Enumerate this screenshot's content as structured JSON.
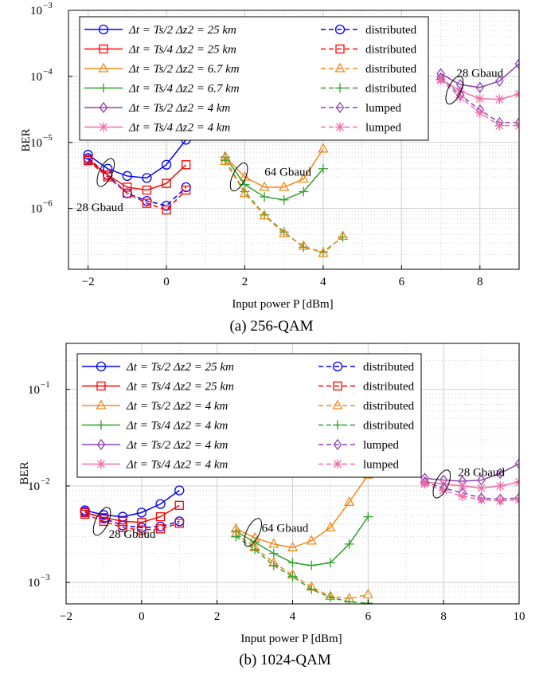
{
  "chart_data": [
    {
      "type": "line",
      "caption": "(a) 256-QAM",
      "xlabel": "Input power P [dBm]",
      "ylabel": "BER",
      "xlim": [
        -2.5,
        9
      ],
      "ylim": [
        1.2e-07,
        0.001
      ],
      "yscale": "log",
      "xticks": [
        -2,
        0,
        2,
        4,
        6,
        8
      ],
      "xtick_labels": [
        "−2",
        "0",
        "2",
        "4",
        "6",
        "8"
      ],
      "yticks": [
        1e-06,
        1e-05,
        0.0001,
        0.001
      ],
      "ytick_labels": [
        "10",
        "10",
        "10",
        "10"
      ],
      "ytick_exponents": [
        "−6",
        "−5",
        "−4",
        "−3"
      ],
      "grid": true,
      "legend_position": "top-left",
      "legend": [
        {
          "cfg": "Δt = Ts/2 Δz2 = 25 km",
          "mode": "distributed",
          "color": "#0000ff",
          "marker": "circle"
        },
        {
          "cfg": "Δt = Ts/4 Δz2 = 25 km",
          "mode": "distributed",
          "color": "#ff0000",
          "marker": "square"
        },
        {
          "cfg": "Δt = Ts/2 Δz2 = 6.7 km",
          "mode": "distributed",
          "color": "#f28a1b",
          "marker": "triangle"
        },
        {
          "cfg": "Δt = Ts/4 Δz2 = 6.7 km",
          "mode": "distributed",
          "color": "#33a02c",
          "marker": "plus"
        },
        {
          "cfg": "Δt = Ts/2 Δz2 = 4 km",
          "mode": "lumped",
          "color": "#8e44ad",
          "marker": "diamond"
        },
        {
          "cfg": "Δt = Ts/4 Δz2 = 4 km",
          "mode": "lumped",
          "color": "#f06eaa",
          "marker": "star"
        }
      ],
      "annotations": [
        {
          "text": "28 Gbaud",
          "x": -1.7,
          "y": 1.05e-06
        },
        {
          "text": "64 Gbaud",
          "x": 3.1,
          "y": 3.6e-06
        },
        {
          "text": "28 Gbaud",
          "x": 8.0,
          "y": 0.000113
        }
      ],
      "ellipses": [
        {
          "x": -1.55,
          "y": 3.5e-06
        },
        {
          "x": 1.85,
          "y": 3e-06
        },
        {
          "x": 7.35,
          "y": 6.2e-05
        }
      ],
      "series": [
        {
          "color": "#0000ff",
          "marker": "circle",
          "dash": "solid",
          "x": [
            -2,
            -1.5,
            -1,
            -0.5,
            0,
            0.5
          ],
          "y": [
            6.5e-06,
            4e-06,
            3.1e-06,
            2.9e-06,
            4.6e-06,
            1.1e-05
          ]
        },
        {
          "color": "#0000ff",
          "marker": "circle",
          "dash": "dashed",
          "x": [
            -2,
            -1.5,
            -1,
            -0.5,
            0,
            0.5
          ],
          "y": [
            5.8e-06,
            3.2e-06,
            1.7e-06,
            1.3e-06,
            1.1e-06,
            2.1e-06
          ]
        },
        {
          "color": "#ff0000",
          "marker": "square",
          "dash": "solid",
          "x": [
            -2,
            -1.5,
            -1,
            -0.5,
            0,
            0.5
          ],
          "y": [
            5.5e-06,
            3.2e-06,
            2.1e-06,
            1.9e-06,
            2.4e-06,
            4.6e-06
          ]
        },
        {
          "color": "#ff0000",
          "marker": "square",
          "dash": "dashed",
          "x": [
            -2,
            -1.5,
            -1,
            -0.5,
            0,
            0.5
          ],
          "y": [
            5.3e-06,
            3e-06,
            1.7e-06,
            1.2e-06,
            9.5e-07,
            1.9e-06
          ]
        },
        {
          "color": "#f28a1b",
          "marker": "triangle",
          "dash": "solid",
          "x": [
            1.5,
            2,
            2.5,
            3,
            3.5,
            4
          ],
          "y": [
            6.1e-06,
            3e-06,
            2.1e-06,
            2.1e-06,
            2.8e-06,
            8e-06
          ]
        },
        {
          "color": "#33a02c",
          "marker": "plus",
          "dash": "solid",
          "x": [
            1.5,
            2,
            2.5,
            3,
            3.5,
            4
          ],
          "y": [
            6e-06,
            2.3e-06,
            1.5e-06,
            1.35e-06,
            1.8e-06,
            4e-06
          ]
        },
        {
          "color": "#33a02c",
          "marker": "plus",
          "dash": "dashed",
          "x": [
            1.5,
            2,
            2.5,
            3,
            3.5,
            4,
            4.5
          ],
          "y": [
            5.3e-06,
            1.8e-06,
            8e-07,
            4.4e-07,
            2.6e-07,
            2.2e-07,
            3.7e-07
          ]
        },
        {
          "color": "#f28a1b",
          "marker": "triangle",
          "dash": "dashed",
          "x": [
            1.5,
            2,
            2.5,
            3,
            3.5,
            4,
            4.5
          ],
          "y": [
            5.2e-06,
            1.7e-06,
            7.8e-07,
            4.2e-07,
            2.7e-07,
            2.1e-07,
            3.8e-07
          ]
        },
        {
          "color": "#8e44ad",
          "marker": "diamond",
          "dash": "solid",
          "x": [
            7,
            7.5,
            8,
            8.5,
            9
          ],
          "y": [
            0.00011,
            7.5e-05,
            6.8e-05,
            8.5e-05,
            0.000155
          ]
        },
        {
          "color": "#f06eaa",
          "marker": "star",
          "dash": "solid",
          "x": [
            7,
            7.5,
            8,
            8.5,
            9
          ],
          "y": [
            9e-05,
            6e-05,
            4.6e-05,
            4.5e-05,
            5.4e-05
          ]
        },
        {
          "color": "#8e44ad",
          "marker": "diamond",
          "dash": "dashed",
          "x": [
            7,
            7.5,
            8,
            8.5,
            9
          ],
          "y": [
            9.5e-05,
            5.2e-05,
            3.1e-05,
            2e-05,
            2e-05
          ]
        },
        {
          "color": "#f06eaa",
          "marker": "star",
          "dash": "dashed",
          "x": [
            7,
            7.5,
            8,
            8.5,
            9
          ],
          "y": [
            8.8e-05,
            4.8e-05,
            2.8e-05,
            1.8e-05,
            1.8e-05
          ]
        }
      ]
    },
    {
      "type": "line",
      "caption": "(b) 1024-QAM",
      "xlabel": "Input power P [dBm]",
      "ylabel": "BER",
      "xlim": [
        -2,
        10
      ],
      "ylim": [
        0.0006,
        0.3
      ],
      "yscale": "log",
      "xticks": [
        -2,
        0,
        2,
        4,
        6,
        8,
        10
      ],
      "xtick_labels": [
        "−2",
        "0",
        "2",
        "4",
        "6",
        "8",
        "10"
      ],
      "yticks": [
        0.001,
        0.01,
        0.1
      ],
      "ytick_labels": [
        "10",
        "10",
        "10"
      ],
      "ytick_exponents": [
        "−3",
        "−2",
        "−1"
      ],
      "grid": true,
      "legend_position": "top-left",
      "legend": [
        {
          "cfg": "Δt = Ts/2 Δz2 = 25 km",
          "mode": "distributed",
          "color": "#0000ff",
          "marker": "circle"
        },
        {
          "cfg": "Δt = Ts/4 Δz2 = 25 km",
          "mode": "distributed",
          "color": "#ff0000",
          "marker": "square"
        },
        {
          "cfg": "Δt = Ts/2 Δz2 = 4 km",
          "mode": "distributed",
          "color": "#f28a1b",
          "marker": "triangle"
        },
        {
          "cfg": "Δt = Ts/4 Δz2 = 4 km",
          "mode": "distributed",
          "color": "#33a02c",
          "marker": "plus"
        },
        {
          "cfg": "Δt = Ts/2 Δz2 = 4 km",
          "mode": "lumped",
          "color": "#8e44ad",
          "marker": "diamond"
        },
        {
          "cfg": "Δt = Ts/4 Δz2 = 4 km",
          "mode": "lumped",
          "color": "#f06eaa",
          "marker": "star"
        }
      ],
      "annotations": [
        {
          "text": "28 Gbaud",
          "x": -0.25,
          "y": 0.0032
        },
        {
          "text": "64 Gbaud",
          "x": 3.8,
          "y": 0.0037
        },
        {
          "text": "28 Gbaud",
          "x": 9.0,
          "y": 0.014
        }
      ],
      "ellipses": [
        {
          "x": -1.05,
          "y": 0.0043
        },
        {
          "x": 2.95,
          "y": 0.0033
        },
        {
          "x": 7.95,
          "y": 0.0105
        }
      ],
      "series": [
        {
          "color": "#0000ff",
          "marker": "circle",
          "dash": "solid",
          "x": [
            -1.5,
            -1,
            -0.5,
            0,
            0.5,
            1
          ],
          "y": [
            0.0056,
            0.005,
            0.0048,
            0.0053,
            0.0065,
            0.009
          ]
        },
        {
          "color": "#0000ff",
          "marker": "circle",
          "dash": "dashed",
          "x": [
            -1.5,
            -1,
            -0.5,
            0,
            0.5,
            1
          ],
          "y": [
            0.0054,
            0.0046,
            0.0039,
            0.0037,
            0.0038,
            0.0043
          ]
        },
        {
          "color": "#ff0000",
          "marker": "square",
          "dash": "solid",
          "x": [
            -1.5,
            -1,
            -0.5,
            0,
            0.5,
            1
          ],
          "y": [
            0.0053,
            0.0047,
            0.0043,
            0.0042,
            0.0048,
            0.0063
          ]
        },
        {
          "color": "#ff0000",
          "marker": "square",
          "dash": "dashed",
          "x": [
            -1.5,
            -1,
            -0.5,
            0,
            0.5,
            1
          ],
          "y": [
            0.0051,
            0.0043,
            0.0037,
            0.0035,
            0.0036,
            0.0041
          ]
        },
        {
          "color": "#f28a1b",
          "marker": "triangle",
          "dash": "solid",
          "x": [
            2.5,
            3,
            3.5,
            4,
            4.5,
            5,
            5.5,
            6
          ],
          "y": [
            0.0036,
            0.0029,
            0.0025,
            0.0023,
            0.0027,
            0.0037,
            0.0068,
            0.013
          ]
        },
        {
          "color": "#33a02c",
          "marker": "plus",
          "dash": "solid",
          "x": [
            2.5,
            3,
            3.5,
            4,
            4.5,
            5,
            5.5,
            6
          ],
          "y": [
            0.0034,
            0.0026,
            0.002,
            0.0016,
            0.0015,
            0.0016,
            0.0025,
            0.0048
          ]
        },
        {
          "color": "#f28a1b",
          "marker": "triangle",
          "dash": "dashed",
          "x": [
            2.5,
            3,
            3.5,
            4,
            4.5,
            5,
            5.5,
            6
          ],
          "y": [
            0.0032,
            0.0023,
            0.0016,
            0.0012,
            0.0009,
            0.00072,
            0.00068,
            0.00075
          ]
        },
        {
          "color": "#33a02c",
          "marker": "plus",
          "dash": "dashed",
          "x": [
            2.5,
            3,
            3.5,
            4,
            4.5,
            5,
            5.5,
            6
          ],
          "y": [
            0.003,
            0.0022,
            0.0015,
            0.00115,
            0.00085,
            0.0007,
            0.00063,
            0.00061
          ]
        },
        {
          "color": "#8e44ad",
          "marker": "diamond",
          "dash": "solid",
          "x": [
            7.5,
            8,
            8.5,
            9,
            9.5,
            10
          ],
          "y": [
            0.012,
            0.0115,
            0.0112,
            0.0115,
            0.0135,
            0.017
          ]
        },
        {
          "color": "#f06eaa",
          "marker": "star",
          "dash": "solid",
          "x": [
            7.5,
            8,
            8.5,
            9,
            9.5,
            10
          ],
          "y": [
            0.011,
            0.0105,
            0.01,
            0.0095,
            0.01,
            0.011
          ]
        },
        {
          "color": "#8e44ad",
          "marker": "diamond",
          "dash": "dashed",
          "x": [
            7.5,
            8,
            8.5,
            9,
            9.5,
            10
          ],
          "y": [
            0.011,
            0.0095,
            0.0085,
            0.0075,
            0.0073,
            0.0075
          ]
        },
        {
          "color": "#f06eaa",
          "marker": "star",
          "dash": "dashed",
          "x": [
            7.5,
            8,
            8.5,
            9,
            9.5,
            10
          ],
          "y": [
            0.0105,
            0.009,
            0.0078,
            0.0072,
            0.007,
            0.0072
          ]
        }
      ]
    }
  ]
}
